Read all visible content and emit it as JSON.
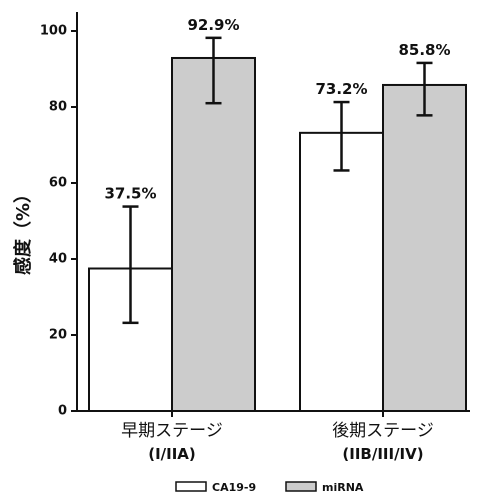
{
  "chart_data": {
    "type": "bar",
    "ylabel": "感度（%）",
    "ylim": [
      0,
      105
    ],
    "yticks": [
      "0",
      "20",
      "40",
      "60",
      "80",
      "100"
    ],
    "categories": [
      {
        "label": "早期ステージ",
        "sublabel": "(I/IIA)"
      },
      {
        "label": "後期ステージ",
        "sublabel": "(IIB/III/IV)"
      }
    ],
    "series": [
      {
        "name": "CA19-9",
        "color": "#ffffff",
        "values": [
          37.5,
          73.2
        ],
        "error_low": [
          23.2,
          63.3
        ],
        "error_high": [
          53.8,
          81.3
        ],
        "labels": [
          "37.5%",
          "73.2%"
        ]
      },
      {
        "name": "miRNA",
        "color": "#cccccc",
        "values": [
          92.9,
          85.8
        ],
        "error_low": [
          81.0,
          77.8
        ],
        "error_high": [
          98.2,
          91.6
        ],
        "labels": [
          "92.9%",
          "85.8%"
        ]
      }
    ],
    "grid": false,
    "legend_position": "bottom-right"
  }
}
